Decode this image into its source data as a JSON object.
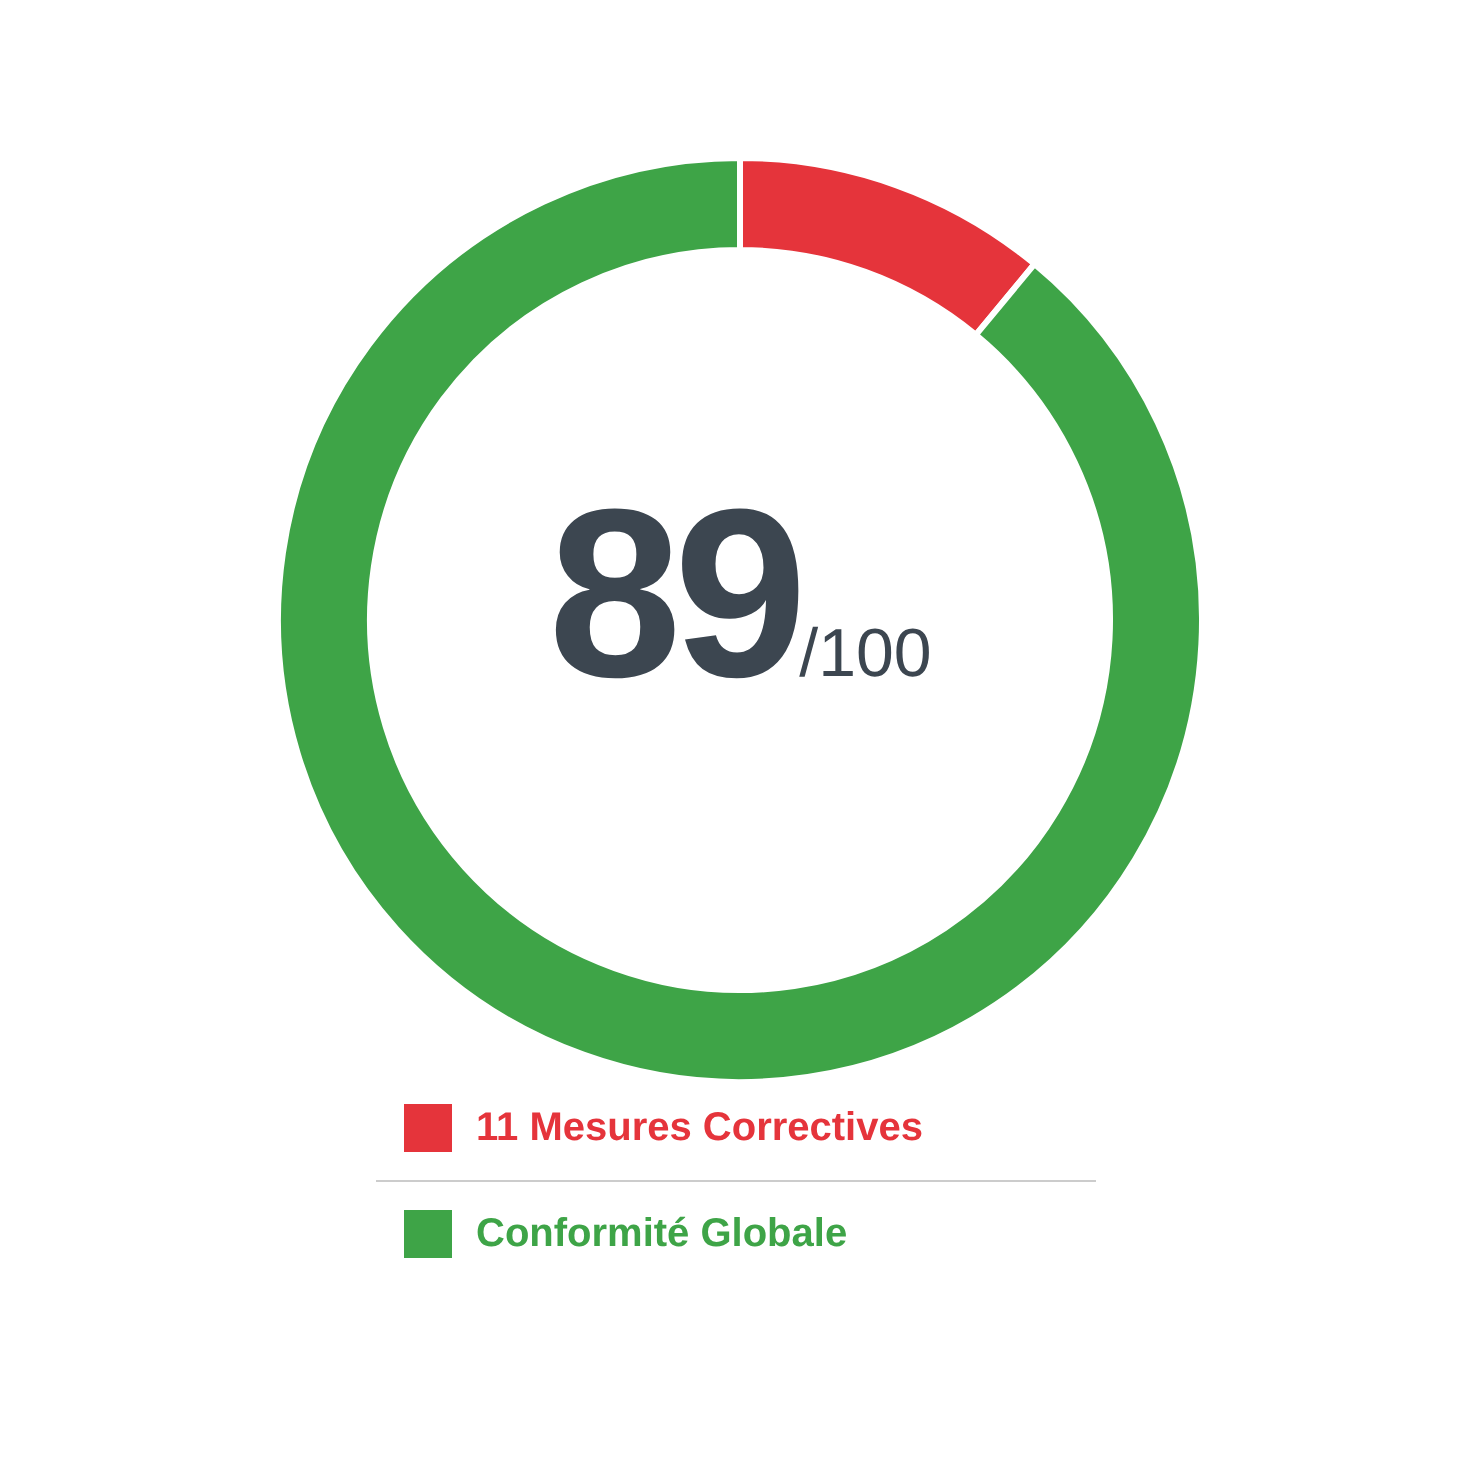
{
  "chart_data": {
    "type": "donut",
    "categories": [
      "11 Mesures Correctives",
      "Conformité Globale"
    ],
    "values": [
      11,
      89
    ],
    "colors": [
      "#e5343b",
      "#3ea447"
    ],
    "annotations": [
      "89",
      "/100"
    ],
    "legend": "bottom"
  }
}
